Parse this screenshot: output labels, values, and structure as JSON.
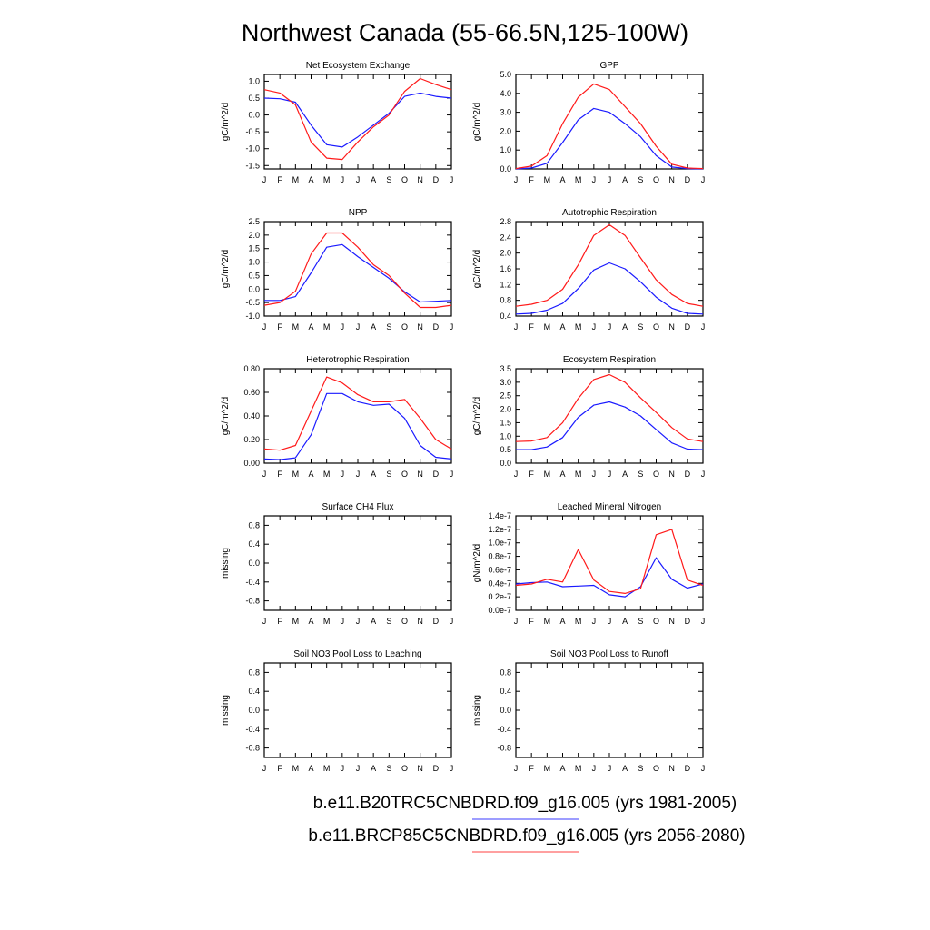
{
  "title": "Northwest Canada (55-66.5N,125-100W)",
  "month_labels": [
    "J",
    "F",
    "M",
    "A",
    "M",
    "J",
    "J",
    "A",
    "S",
    "O",
    "N",
    "D",
    "J"
  ],
  "legend": [
    {
      "label": "b.e11.B20TRC5CNBDRD.f09_g16.005 (yrs 1981-2005)",
      "color": "#3b3bff"
    },
    {
      "label": "b.e11.BRCP85C5CNBDRD.f09_g16.005 (yrs 2056-2080)",
      "color": "#ff4040"
    }
  ],
  "colors": {
    "series1": "#1a1aff",
    "series2": "#ff1a1a"
  },
  "chart_data": [
    {
      "type": "line",
      "title": "Net Ecosystem Exchange",
      "ylabel": "gC/m^2/d",
      "ylim": [
        -1.6,
        1.2
      ],
      "yticks": [
        "1.0",
        "0.5",
        "0.0",
        "-0.5",
        "-1.0",
        "-1.5"
      ],
      "ytick_values": [
        1.0,
        0.5,
        0.0,
        -0.5,
        -1.0,
        -1.5
      ],
      "series": [
        {
          "values": [
            0.5,
            0.48,
            0.38,
            -0.3,
            -0.88,
            -0.95,
            -0.65,
            -0.3,
            0.05,
            0.55,
            0.65,
            0.55,
            0.5
          ]
        },
        {
          "values": [
            0.75,
            0.65,
            0.3,
            -0.8,
            -1.28,
            -1.32,
            -0.8,
            -0.35,
            0.0,
            0.7,
            1.08,
            0.9,
            0.75
          ]
        }
      ]
    },
    {
      "type": "line",
      "title": "GPP",
      "ylabel": "gC/m^2/d",
      "ylim": [
        0,
        5
      ],
      "yticks": [
        "5.0",
        "4.0",
        "3.0",
        "2.0",
        "1.0",
        "0.0"
      ],
      "ytick_values": [
        5,
        4,
        3,
        2,
        1,
        0
      ],
      "series": [
        {
          "values": [
            0.0,
            0.05,
            0.3,
            1.4,
            2.6,
            3.2,
            3.0,
            2.4,
            1.7,
            0.7,
            0.1,
            0.02,
            0.0
          ]
        },
        {
          "values": [
            0.02,
            0.15,
            0.7,
            2.4,
            3.8,
            4.5,
            4.2,
            3.3,
            2.4,
            1.2,
            0.25,
            0.05,
            0.02
          ]
        }
      ]
    },
    {
      "type": "line",
      "title": "NPP",
      "ylabel": "gC/m^2/d",
      "ylim": [
        -1.0,
        2.5
      ],
      "yticks": [
        "2.5",
        "2.0",
        "1.5",
        "1.0",
        "0.5",
        "0.0",
        "-0.5",
        "-1.0"
      ],
      "ytick_values": [
        2.5,
        2.0,
        1.5,
        1.0,
        0.5,
        0.0,
        -0.5,
        -1.0
      ],
      "series": [
        {
          "values": [
            -0.42,
            -0.42,
            -0.28,
            0.6,
            1.55,
            1.65,
            1.2,
            0.8,
            0.4,
            -0.1,
            -0.48,
            -0.45,
            -0.42
          ]
        },
        {
          "values": [
            -0.6,
            -0.5,
            -0.08,
            1.3,
            2.08,
            2.08,
            1.55,
            0.9,
            0.5,
            -0.15,
            -0.68,
            -0.68,
            -0.6
          ]
        }
      ]
    },
    {
      "type": "line",
      "title": "Autotrophic Respiration",
      "ylabel": "gC/m^2/d",
      "ylim": [
        0.4,
        2.8
      ],
      "yticks": [
        "2.8",
        "2.4",
        "2.0",
        "1.6",
        "1.2",
        "0.8",
        "0.4"
      ],
      "ytick_values": [
        2.8,
        2.4,
        2.0,
        1.6,
        1.2,
        0.8,
        0.4
      ],
      "series": [
        {
          "values": [
            0.45,
            0.47,
            0.55,
            0.72,
            1.1,
            1.57,
            1.75,
            1.6,
            1.27,
            0.88,
            0.6,
            0.47,
            0.45
          ]
        },
        {
          "values": [
            0.65,
            0.7,
            0.8,
            1.08,
            1.7,
            2.45,
            2.72,
            2.45,
            1.88,
            1.32,
            0.95,
            0.72,
            0.65
          ]
        }
      ]
    },
    {
      "type": "line",
      "title": "Heterotrophic Respiration",
      "ylabel": "gC/m^2/d",
      "ylim": [
        0,
        0.8
      ],
      "yticks": [
        "0.80",
        "0.60",
        "0.40",
        "0.20",
        "0.00"
      ],
      "ytick_values": [
        0.8,
        0.6,
        0.4,
        0.2,
        0.0
      ],
      "series": [
        {
          "values": [
            0.035,
            0.03,
            0.045,
            0.24,
            0.59,
            0.59,
            0.52,
            0.49,
            0.5,
            0.38,
            0.15,
            0.05,
            0.035
          ]
        },
        {
          "values": [
            0.12,
            0.11,
            0.15,
            0.44,
            0.73,
            0.68,
            0.58,
            0.52,
            0.52,
            0.54,
            0.38,
            0.2,
            0.12
          ]
        }
      ]
    },
    {
      "type": "line",
      "title": "Ecosystem Respiration",
      "ylabel": "gC/m^2/d",
      "ylim": [
        0,
        3.5
      ],
      "yticks": [
        "3.5",
        "3.0",
        "2.5",
        "2.0",
        "1.5",
        "1.0",
        "0.5",
        "0.0"
      ],
      "ytick_values": [
        3.5,
        3.0,
        2.5,
        2.0,
        1.5,
        1.0,
        0.5,
        0.0
      ],
      "series": [
        {
          "values": [
            0.5,
            0.5,
            0.6,
            0.95,
            1.7,
            2.15,
            2.27,
            2.08,
            1.75,
            1.25,
            0.75,
            0.52,
            0.5
          ]
        },
        {
          "values": [
            0.8,
            0.82,
            0.95,
            1.5,
            2.4,
            3.1,
            3.28,
            3.0,
            2.42,
            1.88,
            1.32,
            0.9,
            0.8
          ]
        }
      ]
    },
    {
      "type": "line",
      "title": "Surface CH4 Flux",
      "ylabel": "missing",
      "ylim": [
        -1.0,
        1.0
      ],
      "yticks": [
        "0.8",
        "0.4",
        "0.0",
        "-0.4",
        "-0.8"
      ],
      "ytick_values": [
        0.8,
        0.4,
        0.0,
        -0.4,
        -0.8
      ],
      "series": []
    },
    {
      "type": "line",
      "title": "Leached Mineral Nitrogen",
      "ylabel": "gN/m^2/d",
      "ylim": [
        0,
        1.4e-07
      ],
      "yticks": [
        "1.4e-7",
        "1.2e-7",
        "1.0e-7",
        "0.8e-7",
        "0.6e-7",
        "0.4e-7",
        "0.2e-7",
        "0.0e-7"
      ],
      "ytick_values": [
        1.4e-07,
        1.2e-07,
        1e-07,
        8e-08,
        6e-08,
        4e-08,
        2e-08,
        0.0
      ],
      "series": [
        {
          "values": [
            3.9e-08,
            4.1e-08,
            4.2e-08,
            3.5e-08,
            3.6e-08,
            3.7e-08,
            2.3e-08,
            2e-08,
            3.5e-08,
            7.8e-08,
            4.6e-08,
            3.3e-08,
            3.9e-08
          ]
        },
        {
          "values": [
            3.7e-08,
            3.9e-08,
            4.6e-08,
            4.2e-08,
            9e-08,
            4.5e-08,
            2.8e-08,
            2.5e-08,
            3.2e-08,
            1.12e-07,
            1.2e-07,
            4.5e-08,
            3.7e-08
          ]
        }
      ]
    },
    {
      "type": "line",
      "title": "Soil NO3 Pool Loss to Leaching",
      "ylabel": "missing",
      "ylim": [
        -1.0,
        1.0
      ],
      "yticks": [
        "0.8",
        "0.4",
        "0.0",
        "-0.4",
        "-0.8"
      ],
      "ytick_values": [
        0.8,
        0.4,
        0.0,
        -0.4,
        -0.8
      ],
      "series": []
    },
    {
      "type": "line",
      "title": "Soil NO3 Pool Loss to Runoff",
      "ylabel": "missing",
      "ylim": [
        -1.0,
        1.0
      ],
      "yticks": [
        "0.8",
        "0.4",
        "0.0",
        "-0.4",
        "-0.8"
      ],
      "ytick_values": [
        0.8,
        0.4,
        0.0,
        -0.4,
        -0.8
      ],
      "series": []
    }
  ]
}
